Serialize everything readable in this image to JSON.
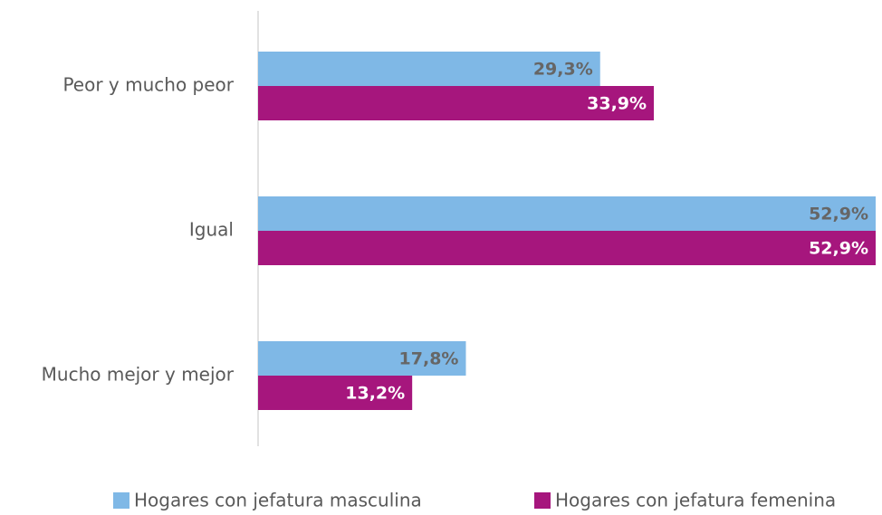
{
  "chart_data": {
    "type": "hbar",
    "categories": [
      "Peor y mucho peor",
      "Igual",
      "Mucho mejor y mejor"
    ],
    "series": [
      {
        "name": "Hogares con jefatura masculina",
        "color": "#7fb8e6",
        "label_color": "#666666",
        "values": [
          29.3,
          52.9,
          17.8
        ],
        "value_labels": [
          "29,3%",
          "52,9%",
          "17,8%"
        ]
      },
      {
        "name": "Hogares con jefatura femenina",
        "color": "#a6167d",
        "label_color": "#ffffff",
        "values": [
          33.9,
          52.9,
          13.2
        ],
        "value_labels": [
          "33,9%",
          "52,9%",
          "13,2%"
        ]
      }
    ],
    "legend": "bottom"
  }
}
